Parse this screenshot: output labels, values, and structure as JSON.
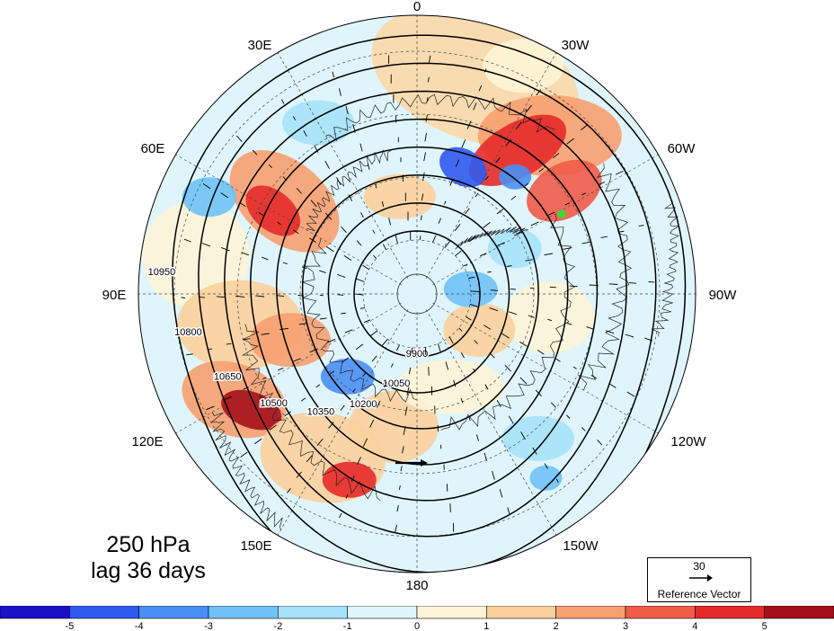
{
  "map": {
    "projection": "north-polar-stereographic",
    "pressure_level": "250 hPa",
    "lag": "lag 36 days",
    "longitude_labels": [
      {
        "text": "0",
        "lon": 0
      },
      {
        "text": "30W",
        "lon": -30
      },
      {
        "text": "60W",
        "lon": -60
      },
      {
        "text": "90W",
        "lon": -90
      },
      {
        "text": "120W",
        "lon": -120
      },
      {
        "text": "150W",
        "lon": -150
      },
      {
        "text": "180",
        "lon": 180
      },
      {
        "text": "150E",
        "lon": 150
      },
      {
        "text": "120E",
        "lon": 120
      },
      {
        "text": "90E",
        "lon": 90
      },
      {
        "text": "60E",
        "lon": 60
      },
      {
        "text": "30E",
        "lon": 30
      }
    ],
    "geopotential_contours": {
      "units_implied": "gpm",
      "levels": [
        9900,
        10050,
        10200,
        10350,
        10500,
        10650,
        10800,
        10950
      ],
      "labels_shown": [
        "9900",
        "10050",
        "10200",
        "10350",
        "10500",
        "10650",
        "10800",
        "10950"
      ]
    },
    "anomaly_shading": {
      "colormap": "blue-white-red",
      "positive_centers": [
        "North Atlantic / Greenland",
        "Scandinavia / Barents",
        "East Siberia",
        "North Pacific"
      ],
      "negative_centers": [
        "Greenland Sea",
        "Sea of Okhotsk"
      ]
    },
    "marker": {
      "color": "#33dd33",
      "description": "green dot near Labrador"
    }
  },
  "reference_vector": {
    "value": "30",
    "label": "Reference Vector"
  },
  "colorbar": {
    "ticks": [
      "-5",
      "-4",
      "-3",
      "-2",
      "-1",
      "0",
      "1",
      "2",
      "3",
      "4",
      "5"
    ],
    "colors": [
      "#1a10c8",
      "#2f5af0",
      "#4a8ff5",
      "#6fc2f7",
      "#a6e2f9",
      "#dcf6fb",
      "#fdf4d6",
      "#fbd09c",
      "#f7a070",
      "#f05b48",
      "#e52a2a",
      "#a60f1a"
    ]
  }
}
